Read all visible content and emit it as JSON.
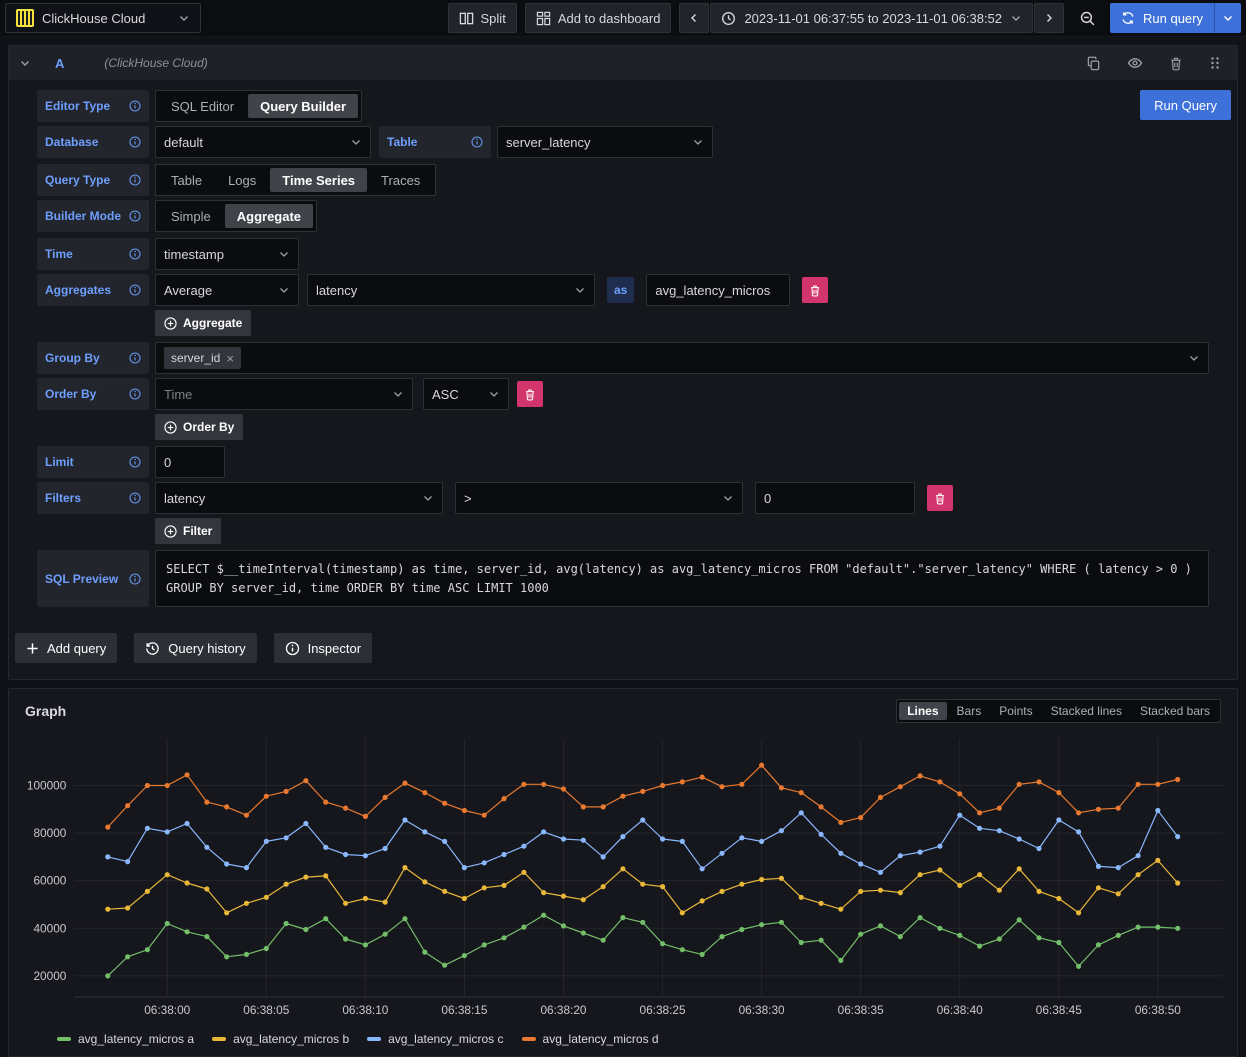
{
  "topbar": {
    "datasource": "ClickHouse Cloud",
    "split": "Split",
    "add_to_dashboard": "Add to dashboard",
    "time_range": "2023-11-01 06:37:55 to 2023-11-01 06:38:52",
    "run_query": "Run query"
  },
  "editor": {
    "ref_id": "A",
    "datasource_hint": "(ClickHouse Cloud)",
    "run_query": "Run Query",
    "editor_type": {
      "label": "Editor Type",
      "options": [
        "SQL Editor",
        "Query Builder"
      ],
      "selected": "Query Builder"
    },
    "database": {
      "label": "Database",
      "value": "default"
    },
    "table": {
      "label": "Table",
      "value": "server_latency"
    },
    "query_type": {
      "label": "Query Type",
      "options": [
        "Table",
        "Logs",
        "Time Series",
        "Traces"
      ],
      "selected": "Time Series"
    },
    "builder_mode": {
      "label": "Builder Mode",
      "options": [
        "Simple",
        "Aggregate"
      ],
      "selected": "Aggregate"
    },
    "time": {
      "label": "Time",
      "value": "timestamp"
    },
    "aggregates": {
      "label": "Aggregates",
      "function": "Average",
      "column": "latency",
      "as_label": "as",
      "alias": "avg_latency_micros",
      "add_button": "Aggregate"
    },
    "group_by": {
      "label": "Group By",
      "tag": "server_id"
    },
    "order_by": {
      "label": "Order By",
      "field": "Time",
      "direction": "ASC",
      "add_button": "Order By"
    },
    "limit": {
      "label": "Limit",
      "value": "0"
    },
    "filters": {
      "label": "Filters",
      "column": "latency",
      "operator": ">",
      "value": "0",
      "add_button": "Filter"
    },
    "sql_preview": {
      "label": "SQL Preview",
      "sql": "SELECT $__timeInterval(timestamp) as time, server_id, avg(latency) as avg_latency_micros FROM \"default\".\"server_latency\" WHERE ( latency > 0 ) GROUP BY server_id, time ORDER BY time ASC LIMIT 1000"
    }
  },
  "footer": {
    "add_query": "Add query",
    "query_history": "Query history",
    "inspector": "Inspector"
  },
  "graph": {
    "title": "Graph",
    "modes": [
      "Lines",
      "Bars",
      "Points",
      "Stacked lines",
      "Stacked bars"
    ],
    "selected_mode": "Lines"
  },
  "chart_data": {
    "type": "line",
    "x_start_time": "06:37:57",
    "x_interval_seconds": 1,
    "x_tick_labels": [
      "06:38:00",
      "06:38:05",
      "06:38:10",
      "06:38:15",
      "06:38:20",
      "06:38:25",
      "06:38:30",
      "06:38:35",
      "06:38:40",
      "06:38:45",
      "06:38:50"
    ],
    "x_tick_indices": [
      3,
      8,
      13,
      18,
      23,
      28,
      33,
      38,
      43,
      48,
      53
    ],
    "y_ticks": [
      20000,
      40000,
      60000,
      80000,
      100000
    ],
    "ylim": [
      12800,
      117000
    ],
    "grid": true,
    "legend_position": "bottom",
    "series": [
      {
        "name": "avg_latency_micros a",
        "color": "#73BF69",
        "values": [
          20000,
          28000,
          31000,
          42000,
          38500,
          36500,
          28000,
          29000,
          31500,
          42000,
          39500,
          44000,
          35500,
          33000,
          37500,
          44000,
          30000,
          24500,
          28500,
          33000,
          36000,
          40500,
          45500,
          41000,
          38000,
          35000,
          44500,
          42500,
          33500,
          31000,
          29000,
          36500,
          39500,
          41500,
          42500,
          34000,
          35000,
          26500,
          37500,
          41000,
          36500,
          44500,
          40000,
          37000,
          32500,
          35500,
          43500,
          36000,
          34000,
          24000,
          33000,
          37000,
          40500,
          40500,
          40000
        ]
      },
      {
        "name": "avg_latency_micros b",
        "color": "#EAB839",
        "values": [
          48000,
          48500,
          55500,
          62500,
          59000,
          56500,
          46500,
          50500,
          53000,
          58500,
          61500,
          62000,
          50500,
          52500,
          51000,
          65500,
          59500,
          55500,
          52500,
          57000,
          58000,
          63500,
          55000,
          53500,
          52000,
          57500,
          65000,
          58500,
          57500,
          46500,
          51500,
          55500,
          58500,
          60500,
          61000,
          53000,
          50500,
          48000,
          55500,
          56000,
          55000,
          62500,
          64500,
          58000,
          62500,
          56000,
          65000,
          55500,
          52500,
          46500,
          57000,
          54500,
          62500,
          68500,
          59000
        ]
      },
      {
        "name": "avg_latency_micros c",
        "color": "#8AB8FF",
        "values": [
          70000,
          68000,
          82000,
          80500,
          84000,
          74000,
          67000,
          65500,
          76500,
          78000,
          84000,
          74000,
          71000,
          70500,
          73500,
          85500,
          80500,
          76500,
          65500,
          67500,
          71000,
          74500,
          80500,
          77500,
          77000,
          70000,
          78500,
          85500,
          77500,
          76500,
          65000,
          71500,
          78000,
          76500,
          81000,
          88500,
          79500,
          71500,
          67000,
          63500,
          70500,
          72000,
          74500,
          87500,
          82000,
          81000,
          77500,
          73500,
          85500,
          80500,
          66000,
          65500,
          70500,
          89500,
          78500
        ]
      },
      {
        "name": "avg_latency_micros d",
        "color": "#E8792E",
        "values": [
          82500,
          91500,
          100000,
          100000,
          104500,
          93000,
          91000,
          87500,
          95500,
          97500,
          102000,
          93000,
          90500,
          87000,
          95000,
          101000,
          97000,
          92500,
          89500,
          87500,
          94500,
          100500,
          100500,
          98500,
          91000,
          91000,
          95500,
          97500,
          100000,
          101500,
          103500,
          99500,
          100500,
          108500,
          99000,
          97000,
          91000,
          84500,
          86500,
          95000,
          99500,
          104000,
          101500,
          96500,
          88500,
          90500,
          100500,
          101500,
          97000,
          88500,
          90000,
          90500,
          100500,
          100500,
          102500
        ]
      }
    ]
  }
}
